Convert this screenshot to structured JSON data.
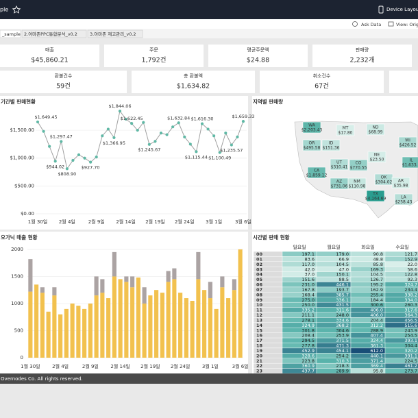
{
  "header": {
    "title": "ple",
    "device_layouts": "Device Layouts",
    "ask_data": "Ask Data",
    "view": "View: Origi"
  },
  "tabs": [
    "_sample",
    "2.아마존PPC통합분석_v0.2",
    "3.아마존 재고관리_v0.2"
  ],
  "kpis": [
    {
      "label": "매출",
      "value": "$45,860.21"
    },
    {
      "label": "주문",
      "value": "1,792건"
    },
    {
      "label": "평균주문액",
      "value": "$24.88"
    },
    {
      "label": "판매량",
      "value": "2,232개"
    },
    {
      "label": "환불건수",
      "value": "59건"
    },
    {
      "label": "총 환불액",
      "value": "$1,634.82"
    },
    {
      "label": "취소건수",
      "value": "67건"
    }
  ],
  "chart_data": [
    {
      "type": "line",
      "title": "기간별 판매현황",
      "color": "#5fb8a5",
      "line_color": "#a0a0a0",
      "categories": [
        "1월 30일",
        null,
        null,
        null,
        null,
        "2월 4일",
        null,
        null,
        null,
        null,
        "2월 9일",
        null,
        null,
        null,
        null,
        "2월 14일",
        null,
        null,
        null,
        null,
        "2월 19일",
        null,
        null,
        null,
        null,
        "2월 24일",
        null,
        null,
        null,
        null,
        "3월 1일",
        null,
        null,
        null,
        null,
        "3월 6일"
      ],
      "tick_categories": [
        5,
        10,
        15,
        20,
        25,
        30,
        35
      ],
      "values": [
        1649.45,
        1480,
        1210,
        944.02,
        1297.47,
        808.9,
        960,
        1060,
        1000,
        927.7,
        1020,
        1400,
        1520,
        1366.95,
        1844.06,
        1700,
        1622.45,
        1500,
        1640,
        1245.67,
        1300,
        1450,
        1420,
        1560,
        1632.84,
        1380,
        1250,
        1115.44,
        1616.3,
        1520,
        1400,
        1100.49,
        1450,
        1235.57,
        1380,
        1659.33
      ],
      "value_labels": [
        "$1,649.45",
        null,
        null,
        "$944.02",
        "$1,297.47",
        "$808.90",
        null,
        null,
        null,
        "$927.70",
        null,
        null,
        null,
        "$1,366.95",
        "$1,844.06",
        null,
        "$1,622.45",
        null,
        null,
        "$1,245.67",
        null,
        null,
        null,
        null,
        "$1,632.84",
        null,
        null,
        "$1,115.44",
        "$1,616.30",
        null,
        null,
        "$1,100.49",
        null,
        "$1,235.57",
        null,
        "$1,659.33"
      ],
      "ylim": [
        0,
        1870
      ],
      "yticks": [
        {
          "value": 0,
          "label": "$0.00"
        },
        {
          "value": 500,
          "label": "$500.00"
        },
        {
          "value": 1000,
          "label": "$1,000.00"
        },
        {
          "value": 1500,
          "label": "$1,500.00"
        }
      ],
      "grid": true
    },
    {
      "type": "stacked_bar",
      "title": "오가닉 매출 현황",
      "categories": [
        "1월 30일",
        null,
        null,
        null,
        null,
        "2월 4일",
        null,
        null,
        null,
        null,
        "2월 9일",
        null,
        null,
        null,
        null,
        "2월 14일",
        null,
        null,
        null,
        null,
        "2월 19일",
        null,
        null,
        null,
        null,
        "2월 24일",
        null,
        null,
        null,
        null,
        "3월 1일",
        null,
        null,
        null,
        null,
        "3월 6일"
      ],
      "series": [
        {
          "color": "#f2c14e",
          "values": [
            1220,
            1350,
            1200,
            850,
            1150,
            800,
            900,
            1000,
            960,
            900,
            1000,
            1150,
            1200,
            1100,
            1500,
            1450,
            1400,
            1300,
            1480,
            1000,
            1150,
            1250,
            1200,
            1400,
            1450,
            1200,
            1100,
            1050,
            1450,
            1250,
            1100,
            900,
            1300,
            1100,
            1250,
            2000
          ]
        },
        {
          "color": "#aba3a3",
          "values": [
            600,
            0,
            100,
            0,
            150,
            0,
            0,
            0,
            0,
            0,
            0,
            350,
            250,
            0,
            450,
            0,
            100,
            200,
            0,
            300,
            0,
            0,
            0,
            200,
            200,
            0,
            0,
            0,
            500,
            0,
            300,
            0,
            200,
            0,
            200,
            0
          ]
        }
      ],
      "ylim": [
        0,
        2100
      ],
      "yticks": [
        0,
        500,
        1000,
        1500,
        2000
      ],
      "grid": true
    }
  ],
  "map": {
    "title": "지역별 판매량",
    "low_color": "#e3f4ef",
    "high_color": "#2a9d8f",
    "regions": [
      {
        "label": "WA",
        "value": 2203.43,
        "value_label": "$2,203.43"
      },
      {
        "label": "OR",
        "value": 495.58,
        "value_label": "$495.58"
      },
      {
        "label": "ID",
        "value": 151.36,
        "value_label": "$151.36"
      },
      {
        "label": "MT",
        "value": 17.8,
        "value_label": "$17.80"
      },
      {
        "label": "ND",
        "value": 68.99,
        "value_label": "$68.99"
      },
      {
        "label": "WI",
        "value": 426.52,
        "value_label": "$426.52"
      },
      {
        "label": "NE",
        "value": 23.5,
        "value_label": "$23.50"
      },
      {
        "label": "UT",
        "value": 310.41,
        "value_label": "$310.41"
      },
      {
        "label": "CO",
        "value": 770.55,
        "value_label": "$770.55"
      },
      {
        "label": "CA",
        "value": 1859.12,
        "value_label": "$1,859.12"
      },
      {
        "label": "AZ",
        "value": 731.06,
        "value_label": "$731.06"
      },
      {
        "label": "NM",
        "value": 110.98,
        "value_label": "$110.98"
      },
      {
        "label": "OK",
        "value": 304.02,
        "value_label": "$304.02"
      },
      {
        "label": "AR",
        "value": 35.98,
        "value_label": "$35.98"
      },
      {
        "label": "TX",
        "value": 4164.69,
        "value_label": "$4,164.69"
      },
      {
        "label": "LA",
        "value": 258.43,
        "value_label": "$258.43"
      },
      {
        "label": "IL",
        "value": 1633.1,
        "value_label": "$1,633.1"
      }
    ]
  },
  "heatmap": {
    "title": "시간별 판매 현황",
    "columns": [
      "일요일",
      "월요일",
      "화요일",
      "수요일"
    ],
    "rows": [
      {
        "hour": "00",
        "values": [
          197.1,
          179.0,
          90.8,
          121.7
        ],
        "value_labels": [
          "197.1",
          "179.0",
          "90.8",
          "121.7"
        ]
      },
      {
        "hour": "01",
        "values": [
          83.6,
          66.9,
          48.8,
          152.9
        ],
        "value_labels": [
          "83.6",
          "66.9",
          "48.8",
          "152.9"
        ]
      },
      {
        "hour": "02",
        "values": [
          117.0,
          104.5,
          85.8,
          22.0
        ],
        "value_labels": [
          "117.0",
          "104.5",
          "85.8",
          "22.0"
        ]
      },
      {
        "hour": "03",
        "values": [
          42.0,
          47.0,
          169.3,
          58.6
        ],
        "value_labels": [
          "42.0",
          "47.0",
          "169.3",
          "58.6"
        ]
      },
      {
        "hour": "04",
        "values": [
          37.0,
          150.1,
          104.5,
          122.8
        ],
        "value_labels": [
          "37.0",
          "150.1",
          "104.5",
          "122.8"
        ]
      },
      {
        "hour": "05",
        "values": [
          151.6,
          88.5,
          126.7,
          92.3
        ],
        "value_labels": [
          "151.6",
          "88.5",
          "126.7",
          "92.3"
        ]
      },
      {
        "hour": "06",
        "values": [
          231.0,
          446.1,
          195.2,
          324.7
        ],
        "value_labels": [
          "231.0",
          "446.1",
          "195.2",
          "324.7"
        ]
      },
      {
        "hour": "07",
        "values": [
          167.8,
          193.7,
          162.9,
          234.4
        ],
        "value_labels": [
          "167.8",
          "193.7",
          "162.9",
          "234.4"
        ]
      },
      {
        "hour": "08",
        "values": [
          168.4,
          385.7,
          255.4,
          338.2
        ],
        "value_labels": [
          "168.4",
          "385.7",
          "255.4",
          "338.2"
        ]
      },
      {
        "hour": "09",
        "values": [
          275.0,
          336.1,
          184.4,
          334.0
        ],
        "value_labels": [
          "275.0",
          "336.1",
          "184.4",
          "334.0"
        ]
      },
      {
        "hour": "10",
        "values": [
          250.0,
          431.5,
          300.6,
          260.3
        ],
        "value_labels": [
          "250.0",
          "431.5",
          "300.6",
          "260.3"
        ]
      },
      {
        "hour": "11",
        "values": [
          335.2,
          311.6,
          406.0,
          317.6
        ],
        "value_labels": [
          "335.2",
          "311.6",
          "406.0",
          "317.6"
        ]
      },
      {
        "hour": "12",
        "values": [
          211.1,
          248.0,
          406.0,
          364.3
        ],
        "value_labels": [
          "211.1",
          "248.0",
          "406.0",
          "364.3"
        ]
      },
      {
        "hour": "13",
        "values": [
          278.1,
          334.6,
          204.4,
          456.5
        ],
        "value_labels": [
          "278.1",
          "334.6",
          "204.4",
          "456.5"
        ]
      },
      {
        "hour": "14",
        "values": [
          324.9,
          368.2,
          312.2,
          515.6
        ],
        "value_labels": [
          "324.9",
          "368.2",
          "312.2",
          "515.6"
        ]
      },
      {
        "hour": "15",
        "values": [
          301.8,
          304.6,
          288.9,
          243.9
        ],
        "value_labels": [
          "301.8",
          "304.6",
          "288.9",
          "243.9"
        ]
      },
      {
        "hour": "16",
        "values": [
          208.4,
          253.9,
          407.4,
          254.5
        ],
        "value_labels": [
          "208.4",
          "253.9",
          "407.4",
          "254.5"
        ]
      },
      {
        "hour": "17",
        "values": [
          294.5,
          371.5,
          324.4,
          393.1
        ],
        "value_labels": [
          "294.5",
          "371.5",
          "324.4",
          "393.1"
        ]
      },
      {
        "hour": "18",
        "values": [
          277.8,
          471.3,
          361.3,
          304.4
        ],
        "value_labels": [
          "277.8",
          "471.3",
          "361.3",
          "304.4"
        ]
      },
      {
        "hour": "19",
        "values": [
          452.9,
          454.1,
          612.0,
          320.2
        ],
        "value_labels": [
          "452.9",
          "454.1",
          "612.0",
          "320.2"
        ]
      },
      {
        "hour": "20",
        "values": [
          328.6,
          254.2,
          440.1,
          391.1
        ],
        "value_labels": [
          "328.6",
          "254.2",
          "440.1",
          "391.1"
        ]
      },
      {
        "hour": "21",
        "values": [
          223.8,
          310.3,
          371.4,
          224.5
        ],
        "value_labels": [
          "223.8",
          "310.3",
          "371.4",
          "224.5"
        ]
      },
      {
        "hour": "22",
        "values": [
          360.9,
          218.3,
          369.4,
          461.2
        ],
        "value_labels": [
          "360.9",
          "218.3",
          "369.4",
          "461.2"
        ]
      },
      {
        "hour": "23",
        "values": [
          437.7,
          289.9,
          95.8,
          273.7
        ],
        "value_labels": [
          "437.7",
          "289.9",
          "95.8",
          "273.7"
        ]
      }
    ]
  },
  "footer": "Overnodes Co. All rights reserved."
}
